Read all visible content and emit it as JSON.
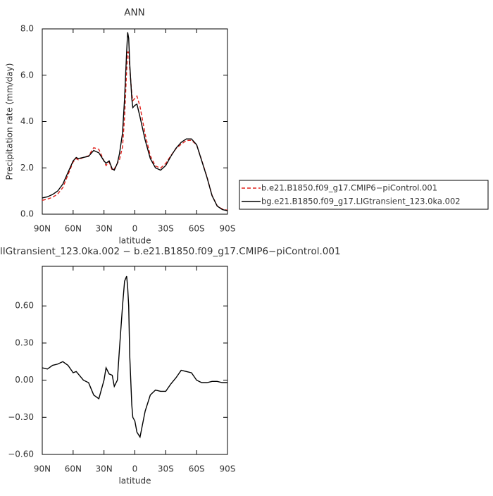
{
  "chart_data": [
    {
      "type": "line",
      "title": "ANN",
      "x_label": "latitude",
      "y_label": "Precipitation rate (mm/day)",
      "x": [
        90,
        85,
        80,
        75,
        70,
        65,
        60,
        57,
        55,
        50,
        45,
        40,
        35,
        30,
        28,
        25,
        22,
        20,
        17,
        15,
        12,
        10,
        8,
        7,
        6,
        5,
        3,
        2,
        0,
        -2,
        -5,
        -10,
        -15,
        -20,
        -25,
        -30,
        -35,
        -40,
        -45,
        -50,
        -55,
        -60,
        -65,
        -70,
        -75,
        -80,
        -85,
        -90
      ],
      "series": [
        {
          "name": "b.e21.B1850.f09_g17.CMIP6−piControl.001",
          "color": "#e0201b",
          "dash": true,
          "values": [
            0.6,
            0.65,
            0.73,
            0.87,
            1.15,
            1.7,
            2.25,
            2.4,
            2.35,
            2.45,
            2.52,
            2.87,
            2.8,
            2.3,
            2.1,
            2.25,
            1.9,
            1.95,
            2.2,
            2.35,
            2.9,
            4.2,
            6.2,
            7.0,
            7.0,
            6.3,
            5.2,
            4.9,
            5.0,
            5.1,
            4.65,
            3.45,
            2.52,
            2.08,
            1.99,
            2.19,
            2.53,
            2.83,
            3.02,
            3.18,
            3.19,
            3.0,
            2.32,
            1.62,
            0.81,
            0.36,
            0.22,
            0.17
          ]
        },
        {
          "name": "bg.e21.B1850.f09_g17.LIGtransient_123.0ka.002",
          "color": "#000000",
          "dash": false,
          "values": [
            0.7,
            0.75,
            0.85,
            1.0,
            1.3,
            1.8,
            2.3,
            2.45,
            2.4,
            2.45,
            2.5,
            2.75,
            2.65,
            2.3,
            2.2,
            2.3,
            1.95,
            1.9,
            2.2,
            2.6,
            3.5,
            5.0,
            7.0,
            7.85,
            7.6,
            6.5,
            5.0,
            4.6,
            4.7,
            4.75,
            4.2,
            3.2,
            2.4,
            2.0,
            1.9,
            2.1,
            2.5,
            2.85,
            3.1,
            3.25,
            3.25,
            3.0,
            2.3,
            1.6,
            0.8,
            0.35,
            0.2,
            0.15
          ]
        }
      ],
      "xlim": [
        90,
        -90
      ],
      "xticks": [
        {
          "value": 90,
          "label": "90N"
        },
        {
          "value": 60,
          "label": "60N"
        },
        {
          "value": 30,
          "label": "30N"
        },
        {
          "value": 0,
          "label": "0"
        },
        {
          "value": -30,
          "label": "30S"
        },
        {
          "value": -60,
          "label": "60S"
        },
        {
          "value": -90,
          "label": "90S"
        }
      ],
      "ylim": [
        0,
        8
      ],
      "yticks": [
        {
          "value": 0,
          "label": "0.0"
        },
        {
          "value": 2,
          "label": "2.0"
        },
        {
          "value": 4,
          "label": "4.0"
        },
        {
          "value": 6,
          "label": "6.0"
        },
        {
          "value": 8,
          "label": "8.0"
        }
      ],
      "legend": "right"
    },
    {
      "type": "line",
      "title": "lIGtransient_123.0ka.002 − b.e21.B1850.f09_g17.CMIP6−piControl.001",
      "x_label": "latitude",
      "x": [
        90,
        85,
        80,
        75,
        70,
        65,
        60,
        57,
        55,
        50,
        45,
        40,
        35,
        30,
        28,
        25,
        22,
        20,
        17,
        15,
        12,
        10,
        8,
        7,
        6,
        5,
        3,
        2,
        0,
        -2,
        -5,
        -10,
        -15,
        -20,
        -25,
        -30,
        -35,
        -40,
        -45,
        -50,
        -55,
        -60,
        -65,
        -70,
        -75,
        -80,
        -85,
        -90
      ],
      "series": [
        {
          "color": "#000000",
          "dash": false,
          "values": [
            0.1,
            0.09,
            0.12,
            0.13,
            0.15,
            0.12,
            0.06,
            0.07,
            0.05,
            0.0,
            -0.02,
            -0.12,
            -0.15,
            0.0,
            0.1,
            0.05,
            0.04,
            -0.05,
            0.0,
            0.25,
            0.6,
            0.8,
            0.84,
            0.75,
            0.6,
            0.2,
            -0.2,
            -0.3,
            -0.33,
            -0.42,
            -0.46,
            -0.25,
            -0.12,
            -0.08,
            -0.09,
            -0.09,
            -0.03,
            0.02,
            0.08,
            0.07,
            0.06,
            0.0,
            -0.02,
            -0.02,
            -0.01,
            -0.01,
            -0.02,
            -0.02
          ]
        }
      ],
      "xlim": [
        90,
        -90
      ],
      "xticks": [
        {
          "value": 90,
          "label": "90N"
        },
        {
          "value": 60,
          "label": "60N"
        },
        {
          "value": 30,
          "label": "30N"
        },
        {
          "value": 0,
          "label": "0"
        },
        {
          "value": -30,
          "label": "30S"
        },
        {
          "value": -60,
          "label": "60S"
        },
        {
          "value": -90,
          "label": "90S"
        }
      ],
      "ylim": [
        -0.6,
        0.92
      ],
      "yticks": [
        {
          "value": -0.6,
          "label": "−0.60"
        },
        {
          "value": -0.3,
          "label": "−0.30"
        },
        {
          "value": 0,
          "label": "0.00"
        },
        {
          "value": 0.3,
          "label": "0.30"
        },
        {
          "value": 0.6,
          "label": "0.60"
        }
      ]
    }
  ]
}
